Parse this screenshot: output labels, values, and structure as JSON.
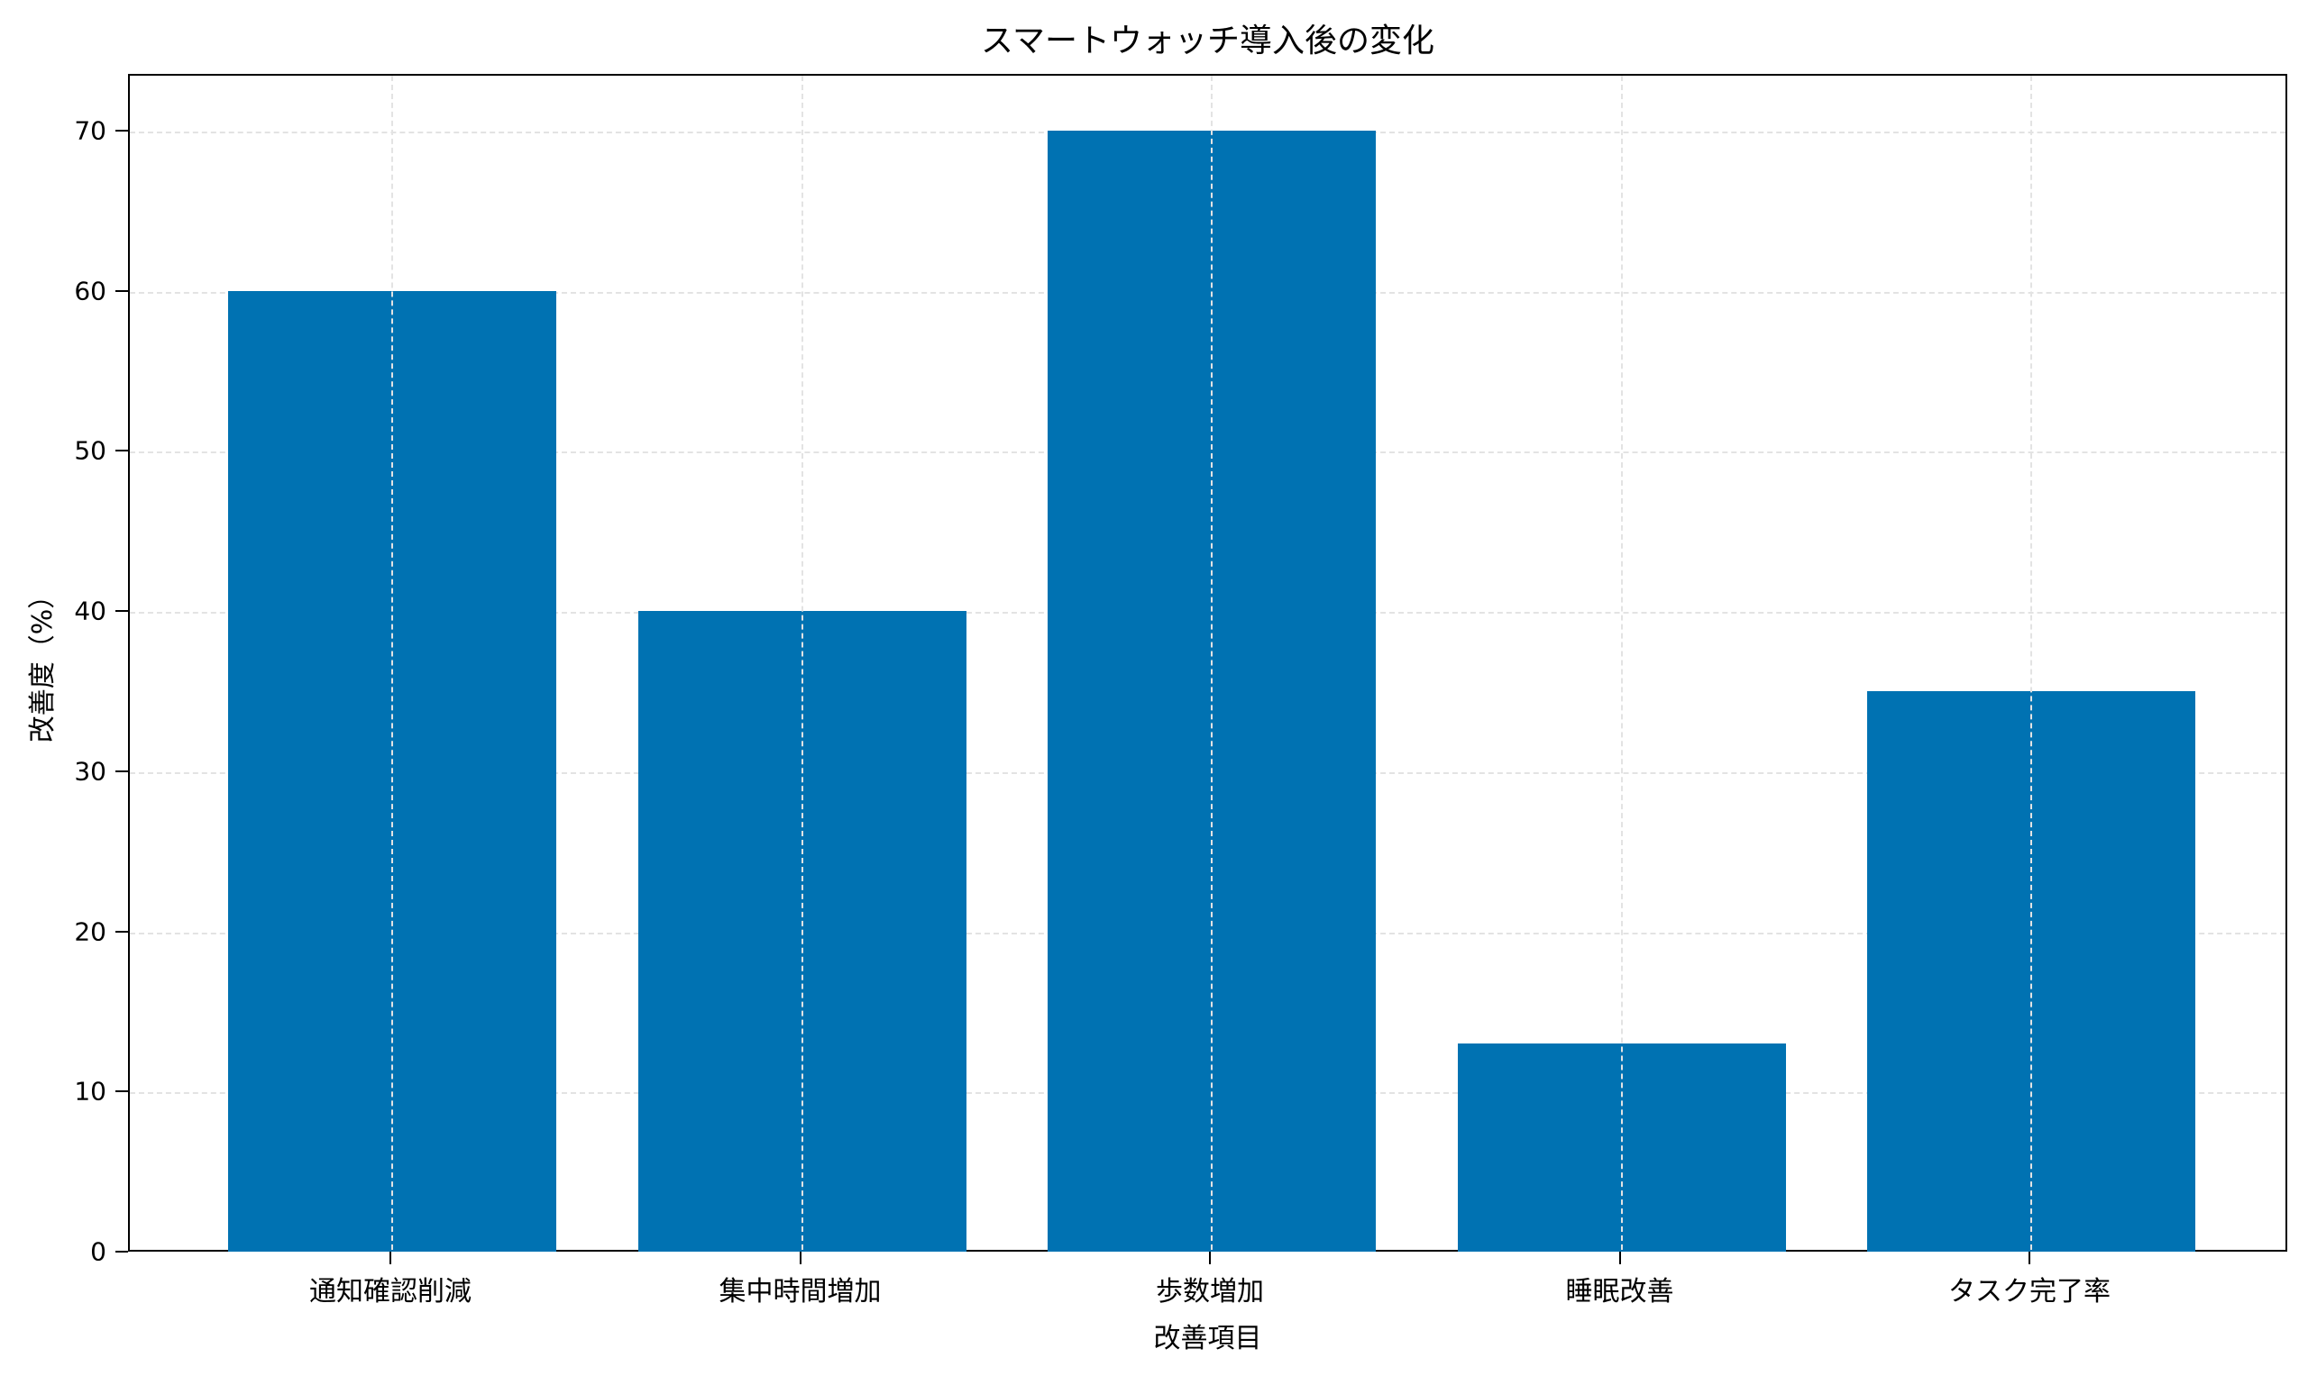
{
  "chart_data": {
    "type": "bar",
    "title": "スマートウォッチ導入後の変化",
    "xlabel": "改善項目",
    "ylabel": "改善度（%）",
    "categories": [
      "通知確認削減",
      "集中時間増加",
      "歩数増加",
      "睡眠改善",
      "タスク完了率"
    ],
    "values": [
      60,
      40,
      70,
      13,
      35
    ],
    "ylim": [
      0,
      73.5
    ],
    "yticks": [
      0,
      10,
      20,
      30,
      40,
      50,
      60,
      70
    ],
    "grid": true,
    "legend": null,
    "bar_color": "#0072b2"
  },
  "labels": {
    "title": "スマートウォッチ導入後の変化",
    "xlabel": "改善項目",
    "ylabel": "改善度（%）",
    "categories": [
      "通知確認削減",
      "集中時間増加",
      "歩数増加",
      "睡眠改善",
      "タスク完了率"
    ],
    "yticks": [
      "0",
      "10",
      "20",
      "30",
      "40",
      "50",
      "60",
      "70"
    ]
  }
}
